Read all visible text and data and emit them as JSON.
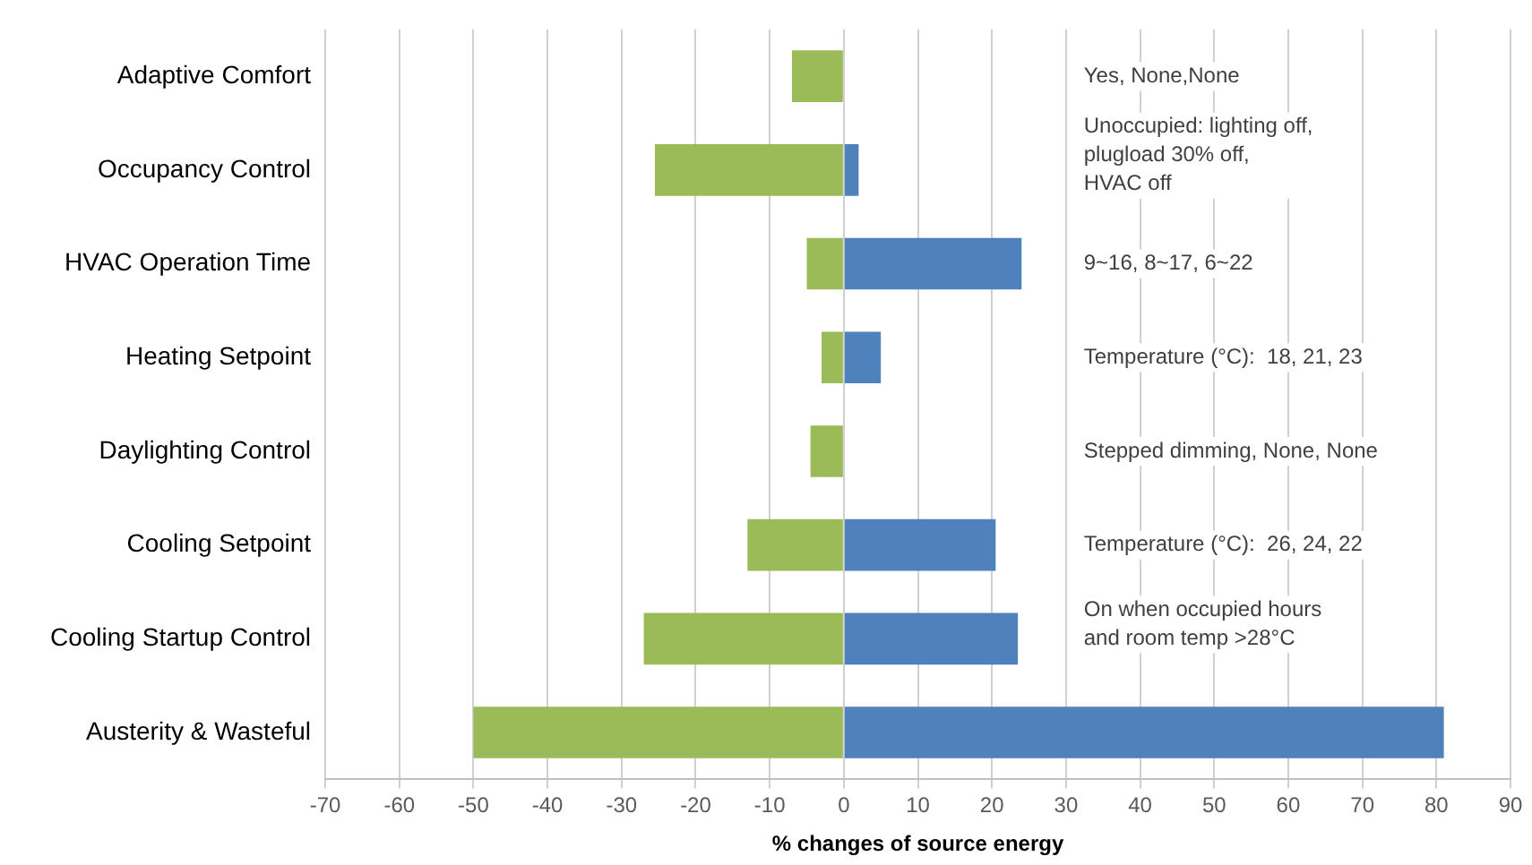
{
  "chart_data": {
    "type": "bar",
    "orientation": "horizontal",
    "stacked": true,
    "xlabel": "% changes of source energy",
    "categories": [
      "Adaptive Comfort",
      "Occupancy Control",
      "HVAC Operation Time",
      "Heating Setpoint",
      "Daylighting Control",
      "Cooling Setpoint",
      "Cooling Startup Control",
      "Austerity & Wasteful"
    ],
    "series": [
      {
        "color": "#9bbb59",
        "values": [
          -7,
          -25.5,
          -5,
          -3,
          -4.5,
          -13,
          -27,
          -50
        ]
      },
      {
        "color": "#4f81bd",
        "values": [
          null,
          2,
          24,
          5,
          null,
          20.5,
          23.5,
          81
        ]
      }
    ],
    "xlim": [
      -70,
      90
    ],
    "xticks": [
      -70,
      -60,
      -50,
      -40,
      -30,
      -20,
      -10,
      0,
      10,
      20,
      30,
      40,
      50,
      60,
      70,
      80,
      90
    ],
    "grid": "x",
    "legend": false,
    "annotations": [
      "Yes, None,None",
      "Unoccupied: lighting off,\nplugload 30% off,\nHVAC off",
      "9~16, 8~17, 6~22",
      "Temperature (°C):  18, 21, 23",
      "Stepped dimming, None, None",
      "Temperature (°C):  26, 24, 22",
      "On when occupied hours\nand room temp >28°C"
    ]
  }
}
